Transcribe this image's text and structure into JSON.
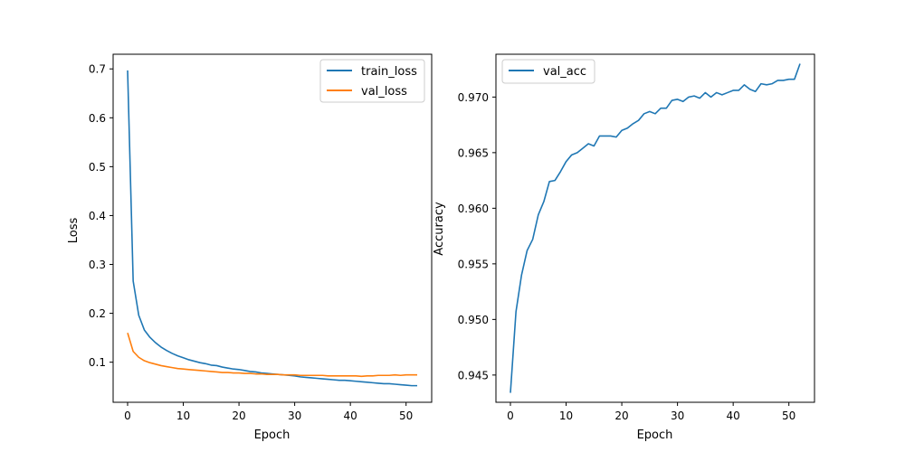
{
  "colors": {
    "train": "#1f77b4",
    "val": "#ff7f0e",
    "acc": "#1f77b4",
    "axis": "#000000",
    "legend_border": "#cccccc"
  },
  "chart_data": [
    {
      "type": "line",
      "xlabel": "Epoch",
      "ylabel": "Loss",
      "xlim": [
        -2.6,
        54.6
      ],
      "ylim": [
        0.018,
        0.73
      ],
      "xticks": [
        0,
        10,
        20,
        30,
        40,
        50
      ],
      "xtick_labels": [
        "0",
        "10",
        "20",
        "30",
        "40",
        "50"
      ],
      "yticks": [
        0.1,
        0.2,
        0.3,
        0.4,
        0.5,
        0.6,
        0.7
      ],
      "ytick_labels": [
        "0.1",
        "0.2",
        "0.3",
        "0.4",
        "0.5",
        "0.6",
        "0.7"
      ],
      "legend_location": "upper right",
      "series": [
        {
          "name": "train_loss",
          "color_key": "train",
          "x": [
            0,
            1,
            2,
            3,
            4,
            5,
            6,
            7,
            8,
            9,
            10,
            11,
            12,
            13,
            14,
            15,
            16,
            17,
            18,
            19,
            20,
            21,
            22,
            23,
            24,
            25,
            26,
            27,
            28,
            29,
            30,
            31,
            32,
            33,
            34,
            35,
            36,
            37,
            38,
            39,
            40,
            41,
            42,
            43,
            44,
            45,
            46,
            47,
            48,
            49,
            50,
            51,
            52
          ],
          "values": [
            0.697,
            0.266,
            0.196,
            0.166,
            0.151,
            0.14,
            0.131,
            0.124,
            0.118,
            0.113,
            0.109,
            0.105,
            0.102,
            0.099,
            0.097,
            0.094,
            0.093,
            0.09,
            0.088,
            0.086,
            0.085,
            0.083,
            0.081,
            0.08,
            0.078,
            0.077,
            0.076,
            0.075,
            0.074,
            0.073,
            0.072,
            0.07,
            0.069,
            0.068,
            0.067,
            0.066,
            0.065,
            0.064,
            0.063,
            0.063,
            0.062,
            0.061,
            0.06,
            0.059,
            0.058,
            0.057,
            0.056,
            0.056,
            0.055,
            0.054,
            0.053,
            0.052,
            0.052
          ]
        },
        {
          "name": "val_loss",
          "color_key": "val",
          "x": [
            0,
            1,
            2,
            3,
            4,
            5,
            6,
            7,
            8,
            9,
            10,
            11,
            12,
            13,
            14,
            15,
            16,
            17,
            18,
            19,
            20,
            21,
            22,
            23,
            24,
            25,
            26,
            27,
            28,
            29,
            30,
            31,
            32,
            33,
            34,
            35,
            36,
            37,
            38,
            39,
            40,
            41,
            42,
            43,
            44,
            45,
            46,
            47,
            48,
            49,
            50,
            51,
            52
          ],
          "values": [
            0.16,
            0.122,
            0.11,
            0.103,
            0.099,
            0.096,
            0.093,
            0.091,
            0.089,
            0.087,
            0.086,
            0.085,
            0.084,
            0.083,
            0.082,
            0.081,
            0.08,
            0.079,
            0.079,
            0.078,
            0.078,
            0.077,
            0.077,
            0.076,
            0.076,
            0.075,
            0.075,
            0.075,
            0.074,
            0.074,
            0.074,
            0.073,
            0.073,
            0.073,
            0.073,
            0.073,
            0.072,
            0.072,
            0.072,
            0.072,
            0.072,
            0.072,
            0.071,
            0.072,
            0.072,
            0.073,
            0.073,
            0.073,
            0.074,
            0.073,
            0.074,
            0.074,
            0.074
          ]
        }
      ]
    },
    {
      "type": "line",
      "xlabel": "Epoch",
      "ylabel": "Accuracy",
      "xlim": [
        -2.6,
        54.6
      ],
      "ylim": [
        0.94255,
        0.97385
      ],
      "xticks": [
        0,
        10,
        20,
        30,
        40,
        50
      ],
      "xtick_labels": [
        "0",
        "10",
        "20",
        "30",
        "40",
        "50"
      ],
      "yticks": [
        0.945,
        0.95,
        0.955,
        0.96,
        0.965,
        0.97
      ],
      "ytick_labels": [
        "0.945",
        "0.950",
        "0.955",
        "0.960",
        "0.965",
        "0.970"
      ],
      "legend_location": "upper left",
      "series": [
        {
          "name": "val_acc",
          "color_key": "acc",
          "x": [
            0,
            1,
            2,
            3,
            4,
            5,
            6,
            7,
            8,
            9,
            10,
            11,
            12,
            13,
            14,
            15,
            16,
            17,
            18,
            19,
            20,
            21,
            22,
            23,
            24,
            25,
            26,
            27,
            28,
            29,
            30,
            31,
            32,
            33,
            34,
            35,
            36,
            37,
            38,
            39,
            40,
            41,
            42,
            43,
            44,
            45,
            46,
            47,
            48,
            49,
            50,
            51,
            52
          ],
          "values": [
            0.9434,
            0.9507,
            0.954,
            0.9562,
            0.9572,
            0.9594,
            0.9606,
            0.9624,
            0.9625,
            0.9633,
            0.9642,
            0.9648,
            0.965,
            0.9654,
            0.9658,
            0.9656,
            0.9665,
            0.9665,
            0.9665,
            0.9664,
            0.967,
            0.9672,
            0.9676,
            0.9679,
            0.9685,
            0.9687,
            0.9685,
            0.969,
            0.969,
            0.9697,
            0.9698,
            0.9696,
            0.97,
            0.9701,
            0.9699,
            0.9704,
            0.97,
            0.9704,
            0.9702,
            0.9704,
            0.9706,
            0.9706,
            0.9711,
            0.9707,
            0.9705,
            0.9712,
            0.9711,
            0.9712,
            0.9715,
            0.9715,
            0.9716,
            0.9716,
            0.973
          ]
        }
      ]
    }
  ]
}
